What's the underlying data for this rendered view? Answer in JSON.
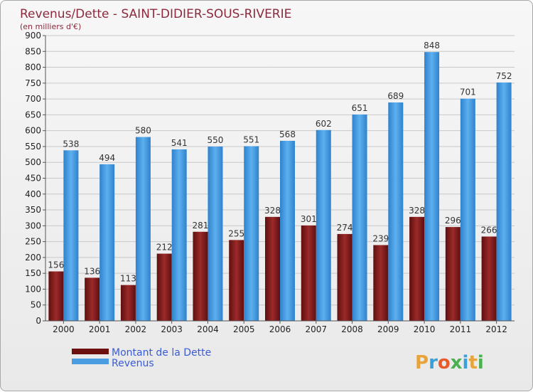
{
  "chart_data": {
    "type": "bar",
    "title": "Revenus/Dette - SAINT-DIDIER-SOUS-RIVERIE",
    "subtitle": "(en milliers d'€)",
    "categories": [
      "2000",
      "2001",
      "2002",
      "2003",
      "2004",
      "2005",
      "2006",
      "2007",
      "2008",
      "2009",
      "2010",
      "2011",
      "2012"
    ],
    "series": [
      {
        "name": "Montant de la Dette",
        "color": "#8b1e1e",
        "values": [
          156,
          136,
          113,
          212,
          281,
          255,
          328,
          301,
          274,
          239,
          328,
          296,
          266
        ]
      },
      {
        "name": "Revenus",
        "color": "#4a9de0",
        "values": [
          538,
          494,
          580,
          541,
          550,
          551,
          568,
          602,
          651,
          689,
          848,
          701,
          752
        ]
      }
    ],
    "ylim": [
      0,
      900
    ],
    "yticks": [
      0,
      50,
      100,
      150,
      200,
      250,
      300,
      350,
      400,
      450,
      500,
      550,
      600,
      650,
      700,
      750,
      800,
      850,
      900
    ],
    "grid": true,
    "legend_position": "bottom-left"
  },
  "brand": {
    "letters": [
      "P",
      "r",
      "o",
      "x",
      "i",
      "t",
      "i"
    ],
    "colors": [
      "#e8a33a",
      "#3aa0d8",
      "#e85a2a",
      "#4caf50",
      "#3aa0d8",
      "#e8a33a",
      "#4caf50"
    ]
  }
}
